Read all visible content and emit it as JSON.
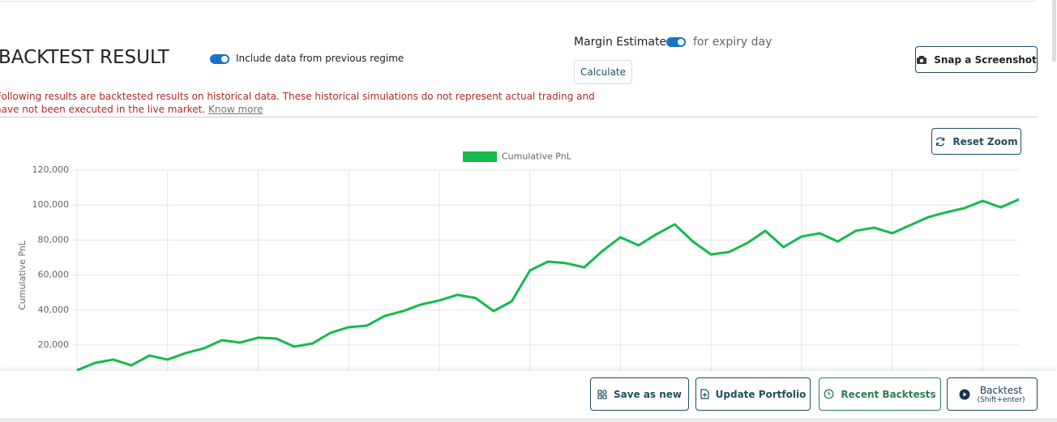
{
  "header": {
    "title": "BACKTEST RESULT",
    "regime_toggle": "Include data from previous regime",
    "margin_label": "Margin Estimate",
    "margin_toggle": "for expiry day",
    "calculate": "Calculate",
    "snapshot": "Snap a Screenshot",
    "disclaimer_line1": "Following results are backtested results on historical data. These historical simulations do not represent actual trading and",
    "disclaimer_line2": "have not been executed in the live market.",
    "know_more": "Know more"
  },
  "reset_zoom": "Reset Zoom",
  "chart_data": {
    "type": "line",
    "ylabel": "Cumulative PnL",
    "categories": [
      null,
      null,
      null,
      null,
      null,
      null,
      null,
      null,
      null,
      null,
      null,
      null,
      null,
      null,
      null,
      null,
      null,
      null,
      null,
      null,
      null,
      null,
      null,
      null,
      null,
      null,
      null,
      null,
      null,
      null,
      null,
      null,
      null,
      null,
      null,
      null,
      null,
      null,
      null,
      null,
      null,
      null,
      null,
      null,
      null,
      null,
      null,
      null,
      null,
      null,
      null,
      null,
      null
    ],
    "series": [
      {
        "name": "Cumulative PnL",
        "color": "#14bb4c",
        "values": [
          5600,
          9800,
          11700,
          8400,
          14000,
          11700,
          15400,
          18100,
          22800,
          21400,
          24200,
          23700,
          19100,
          20900,
          27000,
          30200,
          31100,
          36700,
          39400,
          43200,
          45500,
          48700,
          46900,
          39400,
          45000,
          62600,
          67700,
          66800,
          64400,
          73700,
          81600,
          77000,
          83400,
          89000,
          79200,
          71800,
          73200,
          78300,
          85300,
          76000,
          82000,
          83900,
          79200,
          85300,
          87100,
          83900,
          88500,
          93100,
          95900,
          98300,
          102400,
          98700,
          103300
        ]
      }
    ],
    "ylim": [
      0,
      120000
    ],
    "yticks": [
      {
        "value": 20000,
        "label": "20,000"
      },
      {
        "value": 40000,
        "label": "40,000"
      },
      {
        "value": 60000,
        "label": "60,000"
      },
      {
        "value": 80000,
        "label": "80,000"
      },
      {
        "value": 100000,
        "label": "100,000"
      },
      {
        "value": 120000,
        "label": "120,000"
      }
    ],
    "grid": true,
    "legend": "top"
  },
  "footer": {
    "save": "Save as new",
    "update": "Update Portfolio",
    "recent": "Recent Backtests",
    "backtest": "Backtest",
    "backtest_hint": "(Shift+enter)"
  }
}
